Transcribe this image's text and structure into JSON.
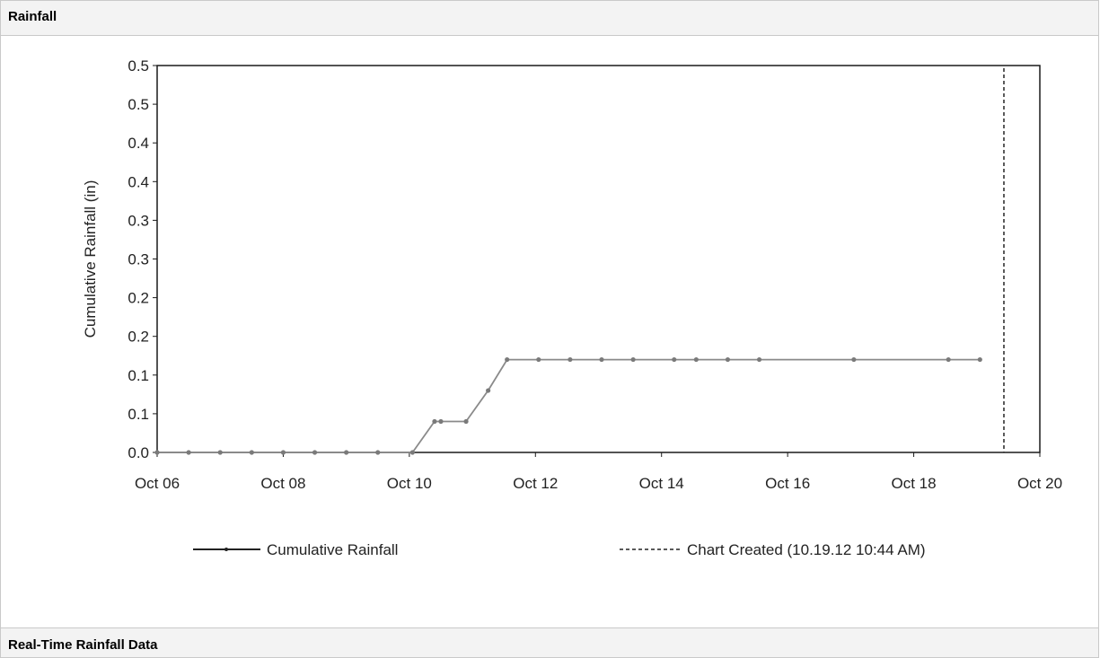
{
  "panels": {
    "top_title": "Rainfall",
    "bottom_title": "Real-Time Rainfall Data"
  },
  "colors": {
    "series_line": "#8a8a8a",
    "series_marker": "#7a7a7a",
    "chart_created_line": "#333333",
    "axis": "#1a1a1a",
    "legend_line": "#222222"
  },
  "chart_data": {
    "type": "line",
    "title": "",
    "xlabel": "",
    "ylabel": "Cumulative Rainfall (in)",
    "x_tick_labels": [
      "Oct 06",
      "Oct 08",
      "Oct 10",
      "Oct 12",
      "Oct 14",
      "Oct 16",
      "Oct 18",
      "Oct 20"
    ],
    "x_tick_days": [
      6,
      8,
      10,
      12,
      14,
      16,
      18,
      20
    ],
    "xlim_days": [
      6,
      20
    ],
    "y_tick_labels": [
      "0.0",
      "0.1",
      "0.1",
      "0.2",
      "0.2",
      "0.3",
      "0.3",
      "0.4",
      "0.4",
      "0.5",
      "0.5"
    ],
    "ylim": [
      0,
      0.5
    ],
    "grid": false,
    "legend_position": "bottom",
    "series": [
      {
        "name": "Cumulative Rainfall",
        "x_days": [
          6.0,
          6.5,
          7.0,
          7.5,
          8.0,
          8.5,
          9.0,
          9.5,
          10.05,
          10.4,
          10.5,
          10.9,
          11.25,
          11.55,
          12.05,
          12.55,
          13.05,
          13.55,
          14.2,
          14.55,
          15.05,
          15.55,
          17.05,
          18.55,
          19.05
        ],
        "values": [
          0.0,
          0.0,
          0.0,
          0.0,
          0.0,
          0.0,
          0.0,
          0.0,
          0.0,
          0.04,
          0.04,
          0.04,
          0.08,
          0.12,
          0.12,
          0.12,
          0.12,
          0.12,
          0.12,
          0.12,
          0.12,
          0.12,
          0.12,
          0.12,
          0.12
        ]
      }
    ],
    "reference_lines": [
      {
        "name": "Chart Created (10.19.12 10:44 AM)",
        "x_day": 19.43,
        "style": "dashed"
      }
    ]
  }
}
